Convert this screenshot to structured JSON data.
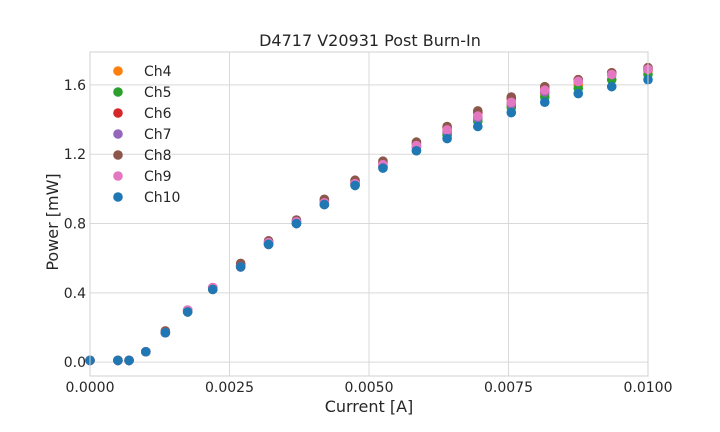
{
  "chart_data": {
    "type": "scatter",
    "title": "D4717 V20931 Post Burn-In",
    "xlabel": "Current [A]",
    "ylabel": "Power [mW]",
    "xlim": [
      0.0,
      0.01
    ],
    "ylim": [
      -0.08,
      1.79
    ],
    "xticks": [
      0.0,
      0.0025,
      0.005,
      0.0075,
      0.01
    ],
    "xtick_labels": [
      "0.0000",
      "0.0025",
      "0.0050",
      "0.0075",
      "0.0100"
    ],
    "yticks": [
      0.0,
      0.4,
      0.8,
      1.2,
      1.6
    ],
    "ytick_labels": [
      "0.0",
      "0.4",
      "0.8",
      "1.2",
      "1.6"
    ],
    "grid": true,
    "legend_position": "top-left",
    "x": [
      0.0,
      0.0005,
      0.0007,
      0.001,
      0.00135,
      0.00175,
      0.0022,
      0.0027,
      0.0032,
      0.0037,
      0.0042,
      0.00475,
      0.00525,
      0.00585,
      0.0064,
      0.00695,
      0.00755,
      0.00815,
      0.00875,
      0.00935,
      0.01
    ],
    "series": [
      {
        "name": "Ch4",
        "color": "#ff7f0e",
        "values": [
          0.01,
          0.01,
          0.01,
          0.06,
          0.17,
          0.29,
          0.42,
          0.55,
          0.68,
          0.8,
          0.91,
          1.03,
          1.13,
          1.24,
          1.32,
          1.41,
          1.48,
          1.55,
          1.6,
          1.66,
          1.68
        ]
      },
      {
        "name": "Ch5",
        "color": "#2ca02c",
        "values": [
          0.01,
          0.01,
          0.01,
          0.06,
          0.17,
          0.29,
          0.42,
          0.55,
          0.68,
          0.8,
          0.91,
          1.02,
          1.13,
          1.22,
          1.31,
          1.39,
          1.47,
          1.53,
          1.58,
          1.63,
          1.66
        ]
      },
      {
        "name": "Ch6",
        "color": "#d62728",
        "values": [
          0.01,
          0.01,
          0.01,
          0.06,
          0.17,
          0.3,
          0.43,
          0.56,
          0.69,
          0.81,
          0.93,
          1.04,
          1.15,
          1.26,
          1.35,
          1.44,
          1.52,
          1.58,
          1.63,
          1.67,
          1.69
        ]
      },
      {
        "name": "Ch7",
        "color": "#9467bd",
        "values": [
          0.01,
          0.01,
          0.01,
          0.06,
          0.17,
          0.29,
          0.42,
          0.55,
          0.68,
          0.8,
          0.91,
          1.03,
          1.13,
          1.24,
          1.33,
          1.41,
          1.49,
          1.56,
          1.62,
          1.66,
          1.69
        ]
      },
      {
        "name": "Ch8",
        "color": "#8c564b",
        "values": [
          0.01,
          0.01,
          0.01,
          0.06,
          0.18,
          0.3,
          0.43,
          0.57,
          0.7,
          0.82,
          0.94,
          1.05,
          1.16,
          1.27,
          1.36,
          1.45,
          1.53,
          1.59,
          1.63,
          1.67,
          1.7
        ]
      },
      {
        "name": "Ch9",
        "color": "#e377c2",
        "values": [
          0.01,
          0.01,
          0.01,
          0.06,
          0.17,
          0.3,
          0.43,
          0.55,
          0.69,
          0.81,
          0.92,
          1.03,
          1.14,
          1.25,
          1.34,
          1.42,
          1.5,
          1.57,
          1.62,
          1.66,
          1.69
        ]
      },
      {
        "name": "Ch10",
        "color": "#1f77b4",
        "values": [
          0.01,
          0.01,
          0.01,
          0.06,
          0.17,
          0.29,
          0.42,
          0.55,
          0.68,
          0.8,
          0.91,
          1.02,
          1.12,
          1.22,
          1.29,
          1.36,
          1.44,
          1.5,
          1.55,
          1.59,
          1.63
        ]
      }
    ]
  }
}
